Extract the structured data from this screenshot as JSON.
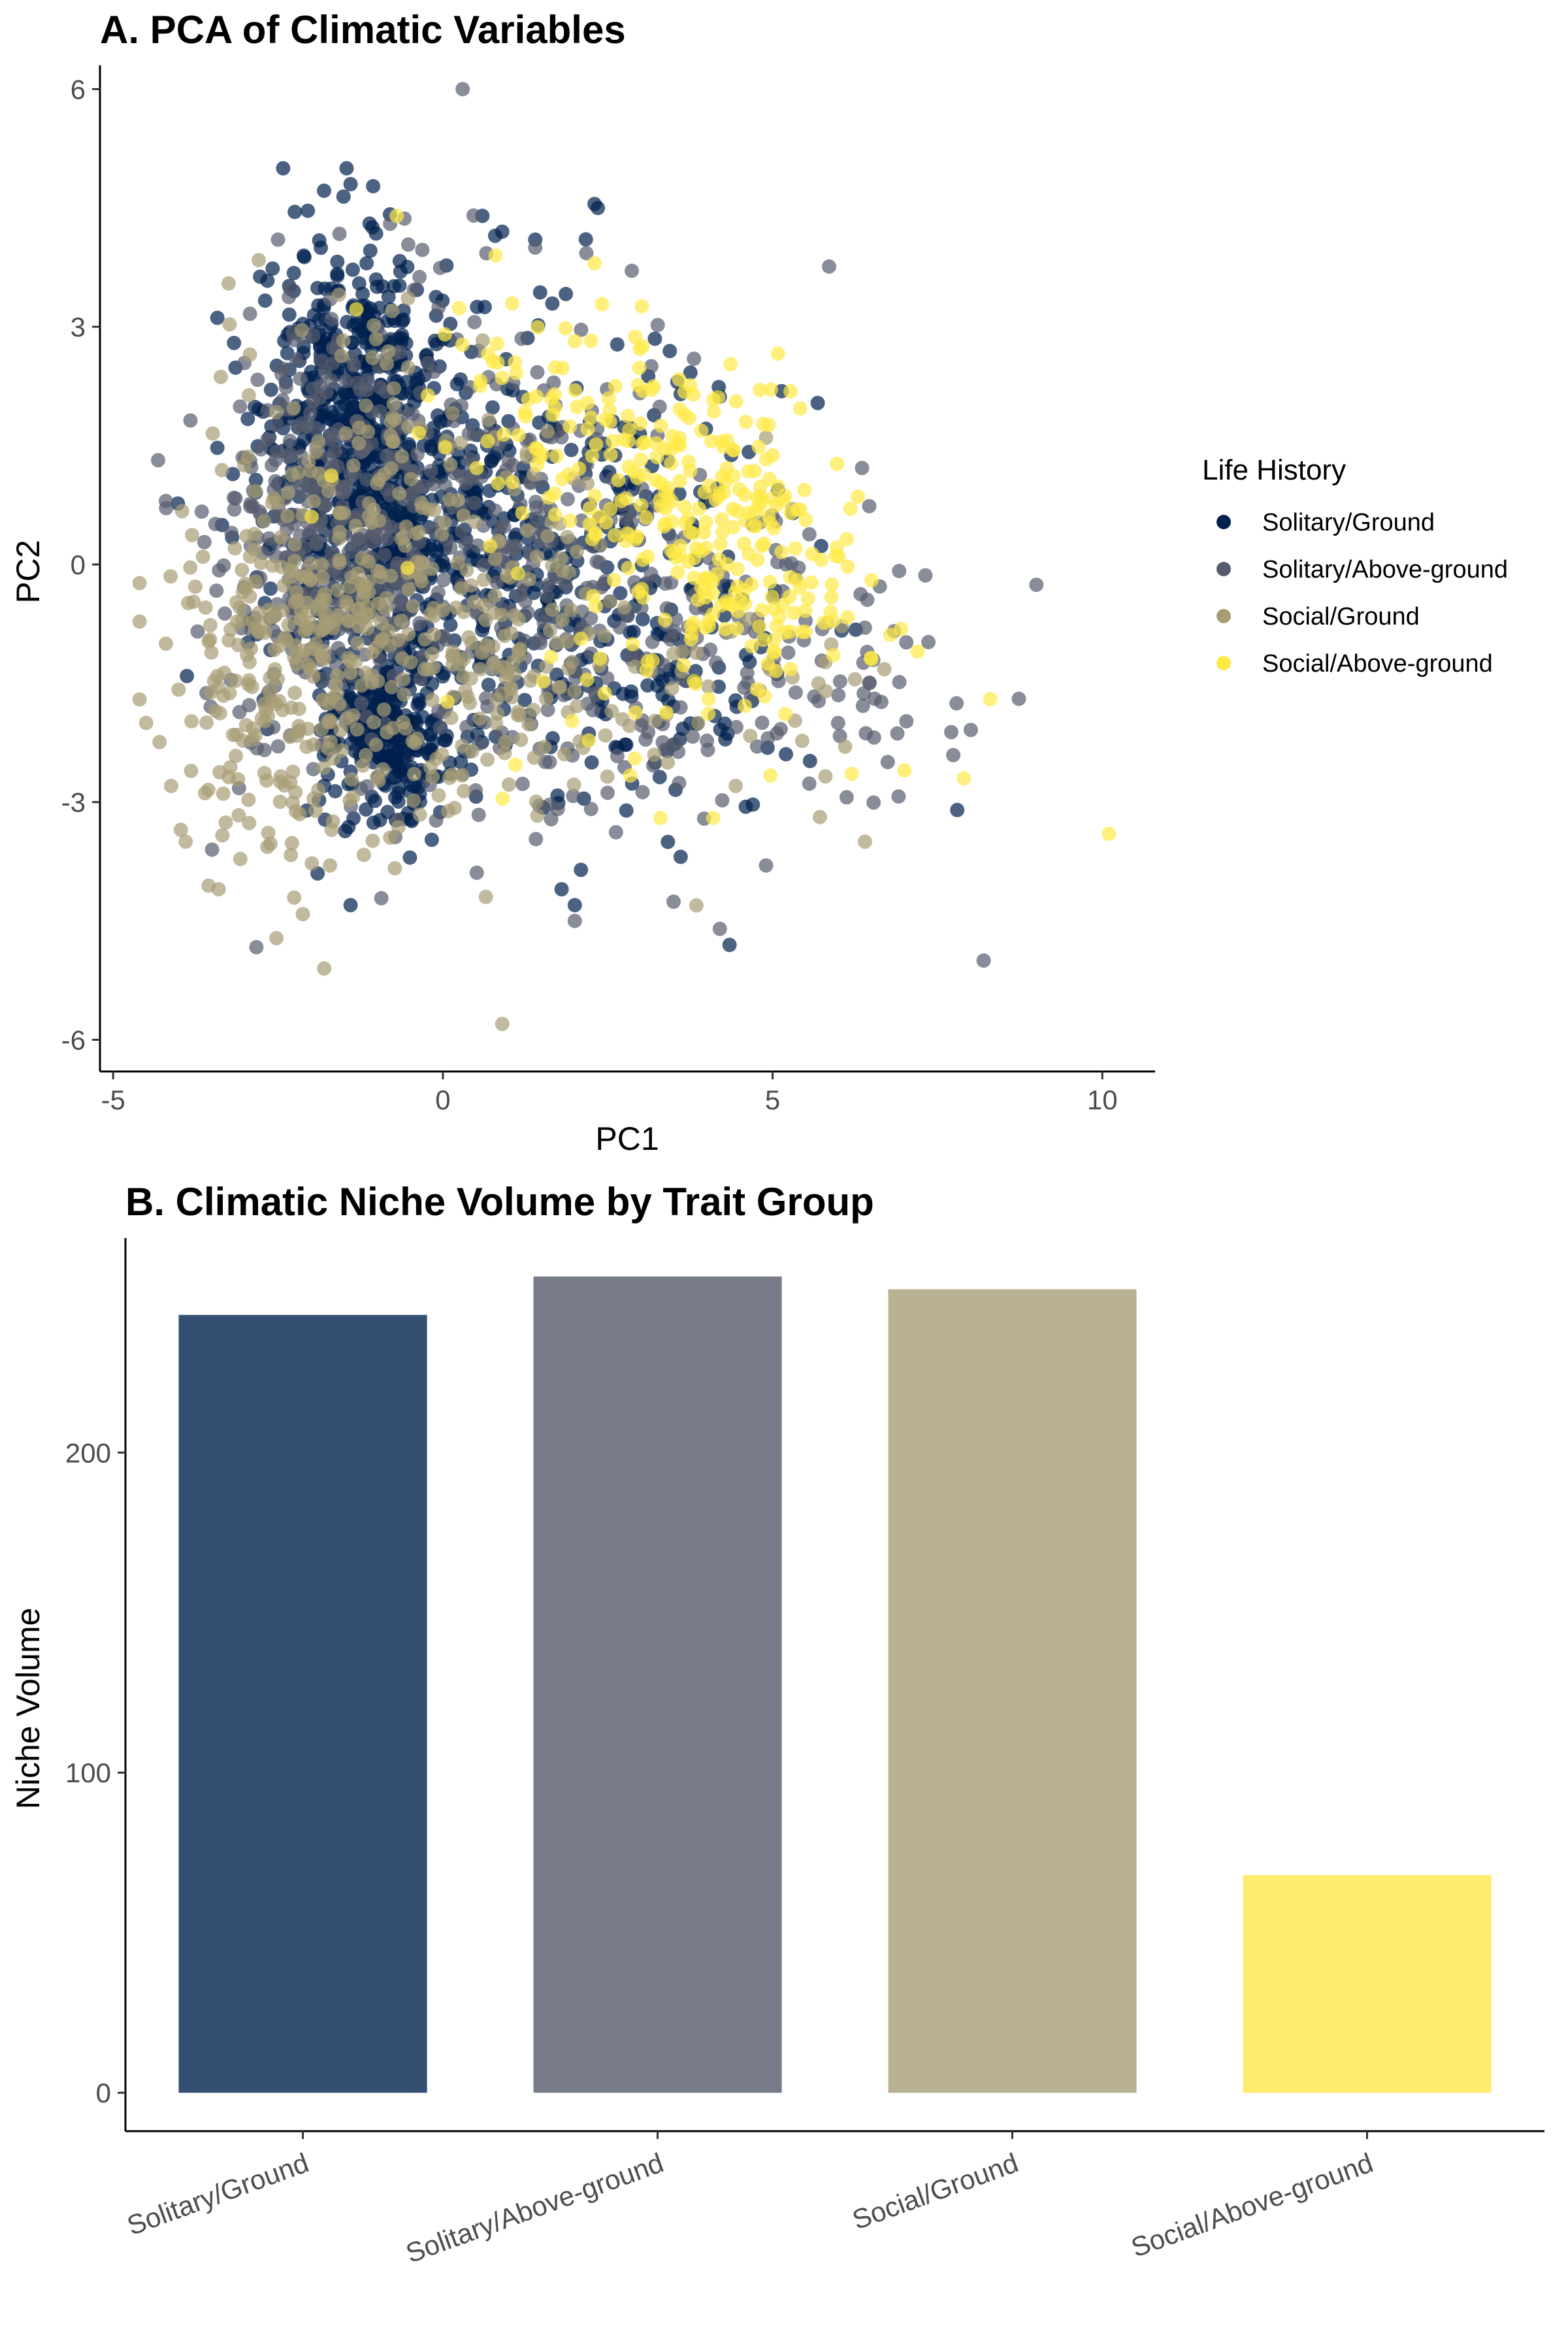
{
  "figure": {
    "panels": [
      {
        "id": "A",
        "title": "A. PCA of Climatic Variables",
        "type": "scatter"
      },
      {
        "id": "B",
        "title": "B. Climatic Niche Volume by Trait Group",
        "type": "bar"
      }
    ]
  },
  "legend": {
    "title": "Life History",
    "entries": [
      {
        "label": "Solitary/Ground",
        "color": "#00204D"
      },
      {
        "label": "Solitary/Above-ground",
        "color": "#575C6D"
      },
      {
        "label": "Social/Ground",
        "color": "#A69D75"
      },
      {
        "label": "Social/Above-ground",
        "color": "#FFEA46"
      }
    ]
  },
  "chart_data": [
    {
      "type": "scatter",
      "title": "A. PCA of Climatic Variables",
      "xlabel": "PC1",
      "ylabel": "PC2",
      "xlim": [
        -5.2,
        10.8
      ],
      "ylim": [
        -6.4,
        6.3
      ],
      "xticks": [
        -5,
        0,
        5,
        10
      ],
      "xtick_labels": [
        "-5",
        "0",
        "5",
        "10"
      ],
      "yticks": [
        -6,
        -3,
        0,
        3,
        6
      ],
      "ytick_labels": [
        "-6",
        "-3",
        "0",
        "3",
        "6"
      ],
      "grid": false,
      "legend_position": "right",
      "point_opacity": 0.7,
      "series": [
        {
          "name": "Solitary/Ground",
          "color": "#00204D",
          "clusters": [
            {
              "cx": -1.3,
              "cy": 1.9,
              "sx": 0.7,
              "sy": 1.0,
              "n": 520
            },
            {
              "cx": -0.8,
              "cy": -2.1,
              "sx": 0.55,
              "sy": 0.55,
              "n": 260
            },
            {
              "cx": -0.9,
              "cy": 0.0,
              "sx": 0.9,
              "sy": 0.9,
              "n": 300
            },
            {
              "cx": 1.8,
              "cy": 0.2,
              "sx": 1.3,
              "sy": 1.5,
              "n": 300
            },
            {
              "cx": 3.2,
              "cy": -1.2,
              "sx": 1.4,
              "sy": 1.0,
              "n": 90
            }
          ],
          "points": [
            [
              -1.4,
              4.8
            ],
            [
              2.3,
              4.55
            ],
            [
              2.35,
              4.5
            ],
            [
              0.6,
              4.4
            ],
            [
              -1.4,
              -4.3
            ],
            [
              1.8,
              -4.1
            ],
            [
              2.0,
              -4.3
            ],
            [
              -0.5,
              -3.7
            ],
            [
              7.8,
              -3.1
            ],
            [
              -1.9,
              -3.9
            ],
            [
              0.9,
              4.2
            ],
            [
              1.4,
              4.1
            ]
          ]
        },
        {
          "name": "Solitary/Above-ground",
          "color": "#575C6D",
          "clusters": [
            {
              "cx": -1.8,
              "cy": 0.6,
              "sx": 0.9,
              "sy": 1.4,
              "n": 330
            },
            {
              "cx": 0.8,
              "cy": 0.3,
              "sx": 1.6,
              "sy": 1.7,
              "n": 260
            },
            {
              "cx": 3.5,
              "cy": -0.8,
              "sx": 1.7,
              "sy": 1.2,
              "n": 140
            },
            {
              "cx": 6.5,
              "cy": -1.6,
              "sx": 0.9,
              "sy": 0.6,
              "n": 30
            }
          ],
          "points": [
            [
              0.3,
              6.0
            ],
            [
              8.2,
              -5.0
            ],
            [
              -2.5,
              4.1
            ],
            [
              4.2,
              -4.6
            ],
            [
              2.0,
              -4.5
            ],
            [
              -4.2,
              0.8
            ],
            [
              -3.5,
              -3.6
            ],
            [
              4.9,
              -3.8
            ],
            [
              -0.8,
              4.3
            ],
            [
              1.4,
              4.0
            ]
          ]
        },
        {
          "name": "Social/Ground",
          "color": "#A69D75",
          "clusters": [
            {
              "cx": -2.3,
              "cy": -1.4,
              "sx": 1.0,
              "sy": 1.2,
              "n": 260
            },
            {
              "cx": 0.4,
              "cy": -1.0,
              "sx": 1.2,
              "sy": 1.1,
              "n": 200
            },
            {
              "cx": -1.0,
              "cy": 0.8,
              "sx": 1.2,
              "sy": 1.3,
              "n": 110
            },
            {
              "cx": 4.2,
              "cy": -1.6,
              "sx": 1.3,
              "sy": 0.8,
              "n": 40
            }
          ],
          "points": [
            [
              0.9,
              -5.8
            ],
            [
              -1.8,
              -5.1
            ],
            [
              -4.5,
              -2.0
            ],
            [
              -3.4,
              -4.1
            ],
            [
              -4.2,
              -1.0
            ],
            [
              4.9,
              1.6
            ],
            [
              5.3,
              0.7
            ],
            [
              6.4,
              -3.5
            ],
            [
              -3.9,
              -3.5
            ],
            [
              6.1,
              -2.3
            ]
          ]
        },
        {
          "name": "Social/Above-ground",
          "color": "#FFEA46",
          "clusters": [
            {
              "cx": 3.6,
              "cy": 1.0,
              "sx": 1.0,
              "sy": 0.9,
              "n": 150
            },
            {
              "cx": 5.0,
              "cy": -0.2,
              "sx": 0.9,
              "sy": 0.7,
              "n": 110
            },
            {
              "cx": 1.4,
              "cy": 2.2,
              "sx": 1.2,
              "sy": 0.9,
              "n": 70
            },
            {
              "cx": 2.5,
              "cy": -1.5,
              "sx": 1.2,
              "sy": 0.8,
              "n": 30
            }
          ],
          "points": [
            [
              10.1,
              -3.4
            ],
            [
              8.3,
              -1.7
            ],
            [
              7.9,
              -2.7
            ],
            [
              -0.7,
              4.4
            ],
            [
              6.0,
              0.1
            ],
            [
              7.0,
              -2.6
            ],
            [
              3.3,
              -3.2
            ],
            [
              4.1,
              -3.2
            ],
            [
              0.8,
              3.9
            ],
            [
              2.3,
              3.8
            ],
            [
              6.5,
              -0.2
            ],
            [
              7.2,
              -1.1
            ]
          ]
        }
      ]
    },
    {
      "type": "bar",
      "title": "B. Climatic Niche Volume by Trait Group",
      "xlabel": "",
      "ylabel": "Niche Volume",
      "categories": [
        "Solitary/Ground",
        "Solitary/Above-ground",
        "Social/Ground",
        "Social/Above-ground"
      ],
      "values": [
        243,
        255,
        251,
        68
      ],
      "colors": [
        "#344F72",
        "#787C8A",
        "#B8B292",
        "#FEEC6F"
      ],
      "ylim": [
        -12,
        267
      ],
      "yticks": [
        0,
        100,
        200
      ],
      "ytick_labels": [
        "0",
        "100",
        "200"
      ],
      "grid": false
    }
  ]
}
